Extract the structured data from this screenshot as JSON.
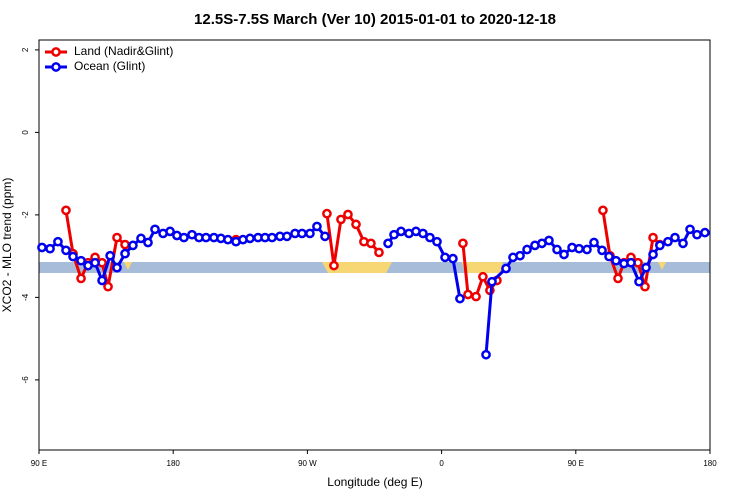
{
  "chart_data": {
    "type": "line",
    "title": "12.5S-7.5S March (Ver 10)   2015-01-01 to 2020-12-18",
    "x_label": "Longitude (deg E)",
    "y_label": "XCO2 - MLO trend (ppm)",
    "xlim": [
      90,
      540
    ],
    "ylim": [
      -7.7,
      2.24
    ],
    "xticks": [
      {
        "value": 90,
        "label": "90 E"
      },
      180,
      {
        "value": 270,
        "label": "90 W"
      },
      {
        "value": 360,
        "label": "0"
      },
      {
        "value": 450,
        "label": "90 E"
      },
      {
        "value": 540,
        "label": "180"
      }
    ],
    "yticks": [
      2,
      0,
      -2,
      -4,
      -6
    ],
    "legend": "top-left",
    "series": [
      {
        "name": "Land (Nadir&Glint)",
        "color": "#ee0000",
        "x": [
          108.1,
          112.8,
          118.2,
          122.9,
          127.6,
          132.3,
          136.3,
          142.3,
          147.7,
          null,
          222.1,
          null,
          283.1,
          287.8,
          292.5,
          297.2,
          302.6,
          307.9,
          312.6,
          318.0,
          null,
          374.3,
          377.7,
          383.1,
          387.7,
          392.4,
          397.1,
          null,
          468.2,
          472.9,
          478.3,
          482.3,
          487.0,
          491.7,
          496.4,
          501.8,
          506.4
        ],
        "values": [
          -1.89,
          -2.94,
          -3.54,
          -3.16,
          -3.03,
          -3.16,
          -3.74,
          -2.55,
          -2.72,
          null,
          -2.6,
          null,
          -1.97,
          -3.23,
          -2.11,
          -1.99,
          -2.23,
          -2.65,
          -2.69,
          -2.91,
          null,
          -2.69,
          -3.93,
          -3.98,
          -3.5,
          -3.83,
          -3.59,
          null,
          -1.89,
          -2.99,
          -3.54,
          -3.16,
          -3.03,
          -3.16,
          -3.74,
          -2.55,
          -2.72
        ]
      },
      {
        "name": "Ocean (Glint)",
        "color": "#0000ee",
        "x": [
          92.0,
          97.4,
          102.7,
          108.1,
          112.8,
          118.2,
          122.9,
          127.6,
          132.3,
          137.7,
          142.3,
          147.7,
          153.0,
          158.4,
          163.1,
          167.8,
          173.2,
          177.9,
          182.5,
          187.2,
          192.6,
          197.3,
          202.0,
          207.3,
          212.0,
          216.7,
          222.1,
          226.8,
          231.5,
          236.9,
          241.6,
          246.3,
          251.6,
          256.3,
          261.7,
          266.4,
          271.7,
          276.4,
          281.8,
          null,
          324.1,
          328.1,
          332.8,
          338.1,
          342.8,
          347.5,
          352.2,
          356.9,
          362.3,
          367.6,
          372.3,
          null,
          389.8,
          393.8,
          403.2,
          407.9,
          412.6,
          417.3,
          422.6,
          427.3,
          432.0,
          437.4,
          442.1,
          447.5,
          452.2,
          457.5,
          462.2,
          467.6,
          472.3,
          477.0,
          482.3,
          487.0,
          492.4,
          497.1,
          501.8,
          506.4,
          511.8,
          516.5,
          521.9,
          526.6,
          531.3,
          536.6
        ],
        "values": [
          -2.79,
          -2.82,
          -2.65,
          -2.86,
          -3.01,
          -3.11,
          -3.23,
          -3.16,
          -3.59,
          -2.99,
          -3.28,
          -2.94,
          -2.74,
          -2.57,
          -2.67,
          -2.35,
          -2.45,
          -2.4,
          -2.5,
          -2.55,
          -2.48,
          -2.55,
          -2.55,
          -2.55,
          -2.57,
          -2.6,
          -2.65,
          -2.6,
          -2.57,
          -2.55,
          -2.55,
          -2.55,
          -2.52,
          -2.52,
          -2.45,
          -2.45,
          -2.45,
          -2.28,
          -2.52,
          null,
          -2.69,
          -2.48,
          -2.4,
          -2.45,
          -2.4,
          -2.45,
          -2.55,
          -2.65,
          -3.03,
          -3.06,
          -4.03,
          null,
          -5.39,
          -3.62,
          -3.3,
          -3.03,
          -2.99,
          -2.84,
          -2.74,
          -2.69,
          -2.62,
          -2.84,
          -2.96,
          -2.79,
          -2.82,
          -2.84,
          -2.67,
          -2.86,
          -3.01,
          -3.11,
          -3.18,
          -3.16,
          -3.62,
          -3.28,
          -2.96,
          -2.74,
          -2.65,
          -2.55,
          -2.69,
          -2.35,
          -2.48,
          -2.43
        ]
      }
    ]
  }
}
